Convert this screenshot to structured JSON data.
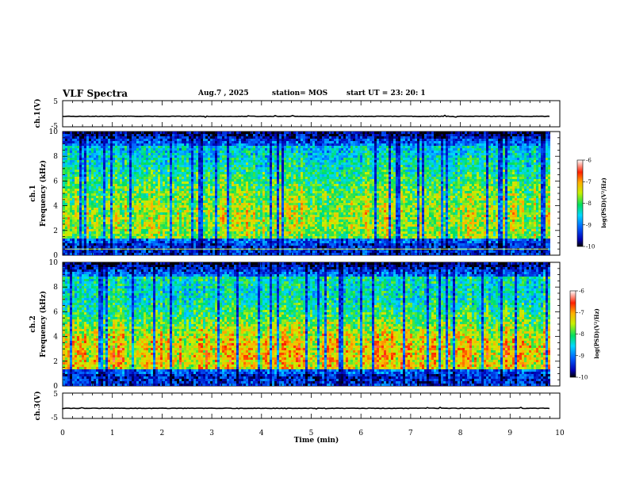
{
  "header": {
    "title": "VLF Spectra",
    "date": "Aug.7 , 2025",
    "station": "station= MOS",
    "start_ut": "start UT = 23: 20: 1"
  },
  "chart_data": [
    {
      "type": "line",
      "panel": "ch1-waveform",
      "ylabel": "ch.1(V)",
      "ylim": [
        -5,
        5
      ],
      "yticks": [
        "5",
        "-5"
      ],
      "baseline": -1.0
    },
    {
      "type": "heatmap",
      "panel": "ch1-spectrogram",
      "ylabel": "ch.1 Frequency (kHz)",
      "ylabel_line1": "ch.1",
      "ylabel_line2": "Frequency (kHz)",
      "ylim": [
        0,
        10
      ],
      "yticks": [
        "0",
        "2",
        "4",
        "6",
        "8",
        "10"
      ],
      "xlim": [
        0,
        10
      ],
      "data_end_min": 9.8,
      "colorbar": {
        "label": "log(PSD)(V²/Hz)",
        "ticks": [
          "-6",
          "-7",
          "-8",
          "-9",
          "-10"
        ],
        "range": [
          -10,
          -6
        ]
      },
      "reference_line_khz": 0.5
    },
    {
      "type": "heatmap",
      "panel": "ch2-spectrogram",
      "ylabel": "ch.2 Frequency (kHz)",
      "ylabel_line1": "ch.2",
      "ylabel_line2": "Frequency (kHz)",
      "ylim": [
        0,
        10
      ],
      "yticks": [
        "0",
        "2",
        "4",
        "6",
        "8",
        "10"
      ],
      "xlim": [
        0,
        10
      ],
      "data_end_min": 9.8,
      "colorbar": {
        "label": "log(PSD)(V²/Hz)",
        "ticks": [
          "-6",
          "-7",
          "-8",
          "-9",
          "-10"
        ],
        "range": [
          -10,
          -6
        ]
      }
    },
    {
      "type": "line",
      "panel": "ch3-waveform",
      "ylabel": "ch.3(V)",
      "ylim": [
        -5,
        5
      ],
      "yticks": [
        "5",
        "-5"
      ],
      "baseline": -1.0,
      "xlabel": "Time (min)",
      "xlim": [
        0,
        10
      ],
      "xticks": [
        "0",
        "1",
        "2",
        "3",
        "4",
        "5",
        "6",
        "7",
        "8",
        "9",
        "10"
      ]
    }
  ]
}
